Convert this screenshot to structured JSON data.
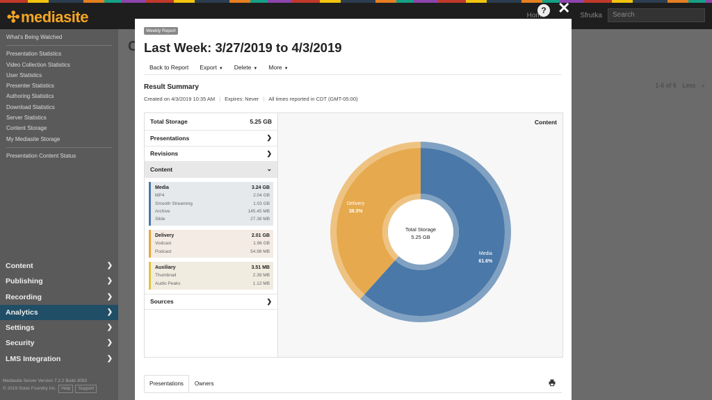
{
  "topbar": {
    "logo": "mediasite",
    "home": "Home",
    "help": "?",
    "user": "Sfrutka",
    "search_placeholder": "Search",
    "close": "✕"
  },
  "sidebar": {
    "sub_items": [
      "What's Being Watched",
      "Presentation Statistics",
      "Video Collection Statistics",
      "User Statistics",
      "Presenter Statistics",
      "Authoring Statistics",
      "Download Statistics",
      "Server Statistics",
      "Content Storage",
      "My Mediasite Storage",
      "Presentation Content Status"
    ],
    "nav": [
      "Content",
      "Publishing",
      "Recording",
      "Analytics",
      "Settings",
      "Security",
      "LMS Integration"
    ],
    "footer_line1": "Mediasite Server Version 7.2.2 Build 3083",
    "footer_line2": "© 2019 Sonic Foundry Inc.",
    "footer_btn1": "Help",
    "footer_btn2": "Support"
  },
  "background": {
    "title": "C",
    "pager": "1-6 of 6",
    "less": "Less"
  },
  "modal": {
    "badge": "Weekly Report",
    "title": "Last Week: 3/27/2019 to 4/3/2019",
    "toolbar": {
      "back": "Back to Report",
      "export": "Export",
      "delete": "Delete",
      "more": "More"
    },
    "result_title": "Result Summary",
    "meta": {
      "created": "Created on 4/3/2019 10:35 AM",
      "expires": "Expires: Never",
      "times": "All times reported in CDT (GMT-05:00)"
    },
    "left": {
      "total_label": "Total Storage",
      "total_value": "5.25 GB",
      "presentations": "Presentations",
      "revisions": "Revisions",
      "content": "Content",
      "sources": "Sources",
      "media": {
        "name": "Media",
        "value": "3.24 GB",
        "items": [
          {
            "label": "MP4",
            "value": "2.04 GB"
          },
          {
            "label": "Smooth Streaming",
            "value": "1.03 GB"
          },
          {
            "label": "Archive",
            "value": "145.45 MB"
          },
          {
            "label": "Slide",
            "value": "27.38 MB"
          }
        ]
      },
      "delivery": {
        "name": "Delivery",
        "value": "2.01 GB",
        "items": [
          {
            "label": "Vodcast",
            "value": "1.96 GB"
          },
          {
            "label": "Podcast",
            "value": "54.98 MB"
          }
        ]
      },
      "aux": {
        "name": "Auxiliary",
        "value": "3.51 MB",
        "items": [
          {
            "label": "Thumbnail",
            "value": "2.39 MB"
          },
          {
            "label": "Audio Peaks",
            "value": "1.12 MB"
          }
        ]
      }
    },
    "chart_title": "Content",
    "center_label": "Total Storage",
    "center_value": "5.25 GB",
    "tabs": [
      "Presentations",
      "Owners"
    ]
  },
  "chart_data": {
    "type": "pie",
    "title": "Content",
    "slices": [
      {
        "name": "Media",
        "value": 61.6,
        "label": "61.6%",
        "color": "#4a78a8"
      },
      {
        "name": "Delivery",
        "value": 38.3,
        "label": "38.3%",
        "color": "#e6a94d"
      }
    ],
    "center_text": [
      "Total Storage",
      "5.25 GB"
    ]
  }
}
